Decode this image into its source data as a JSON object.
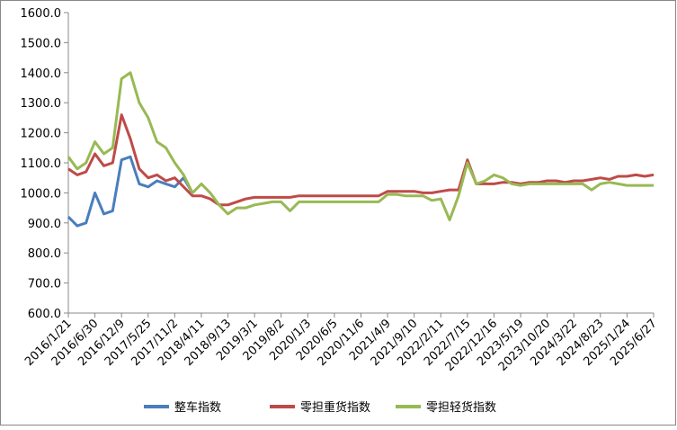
{
  "chart_data": {
    "type": "line",
    "categories": [
      "2016/1/21",
      null,
      null,
      "2016/6/30",
      null,
      null,
      "2016/12/9",
      null,
      null,
      "2017/5/25",
      null,
      null,
      "2017/11/2",
      null,
      null,
      "2018/4/11",
      null,
      null,
      "2018/9/13",
      null,
      null,
      "2019/3/1",
      null,
      null,
      "2019/8/2",
      null,
      null,
      "2020/1/3",
      null,
      null,
      "2020/6/5",
      null,
      null,
      "2020/11/6",
      null,
      null,
      "2021/4/9",
      null,
      null,
      "2021/9/10",
      null,
      null,
      "2022/2/11",
      null,
      null,
      "2022/7/15",
      null,
      null,
      "2022/12/16",
      null,
      null,
      "2023/5/19",
      null,
      null,
      "2023/10/20",
      null,
      null,
      "2024/3/22",
      null,
      null,
      "2024/8/23",
      null,
      null,
      "2025/1/24",
      null,
      null,
      "2025/6/27"
    ],
    "series": [
      {
        "name": "整车指数",
        "color": "#4a7ebb",
        "values": [
          920,
          890,
          900,
          1000,
          930,
          940,
          1110,
          1120,
          1030,
          1020,
          1040,
          1030,
          1020,
          1050,
          1000,
          null,
          null,
          null,
          null,
          null,
          null,
          null,
          null,
          null,
          null,
          null,
          null,
          null,
          null,
          null,
          null,
          null,
          null,
          null,
          null,
          null,
          null,
          null,
          null,
          null,
          null,
          null,
          null,
          null,
          null,
          null,
          null,
          null,
          null,
          null,
          null,
          null,
          null,
          null,
          null,
          null,
          null,
          null,
          null,
          null,
          null,
          null,
          null,
          null,
          null,
          null,
          null
        ]
      },
      {
        "name": "零担重货指数",
        "color": "#be4b48",
        "values": [
          1080,
          1060,
          1070,
          1130,
          1090,
          1100,
          1260,
          1180,
          1080,
          1050,
          1060,
          1040,
          1050,
          1020,
          990,
          990,
          980,
          960,
          960,
          970,
          980,
          985,
          985,
          985,
          985,
          985,
          990,
          990,
          990,
          990,
          990,
          990,
          990,
          990,
          990,
          990,
          1005,
          1005,
          1005,
          1005,
          1000,
          1000,
          1005,
          1010,
          1010,
          1110,
          1030,
          1030,
          1030,
          1035,
          1035,
          1030,
          1035,
          1035,
          1040,
          1040,
          1035,
          1040,
          1040,
          1045,
          1050,
          1045,
          1055,
          1055,
          1060,
          1055,
          1060
        ]
      },
      {
        "name": "零担轻货指数",
        "color": "#98b954",
        "values": [
          1120,
          1080,
          1100,
          1170,
          1130,
          1150,
          1380,
          1400,
          1300,
          1250,
          1170,
          1150,
          1100,
          1060,
          1000,
          1030,
          1000,
          960,
          930,
          950,
          950,
          960,
          965,
          970,
          970,
          940,
          970,
          970,
          970,
          970,
          970,
          970,
          970,
          970,
          970,
          970,
          995,
          995,
          990,
          990,
          990,
          975,
          980,
          910,
          990,
          1100,
          1030,
          1040,
          1060,
          1050,
          1030,
          1025,
          1030,
          1030,
          1030,
          1030,
          1030,
          1030,
          1030,
          1010,
          1030,
          1035,
          1030,
          1025,
          1025,
          1025,
          1025
        ]
      }
    ],
    "ylim": [
      600,
      1600
    ],
    "yticks": [
      {
        "value": 600,
        "label": "600.0"
      },
      {
        "value": 700,
        "label": "700.0"
      },
      {
        "value": 800,
        "label": "800.0"
      },
      {
        "value": 900,
        "label": "900.0"
      },
      {
        "value": 1000,
        "label": "1000.0"
      },
      {
        "value": 1100,
        "label": "1100.0"
      },
      {
        "value": 1200,
        "label": "1200.0"
      },
      {
        "value": 1300,
        "label": "1300.0"
      },
      {
        "value": 1400,
        "label": "1400.0"
      },
      {
        "value": 1500,
        "label": "1500.0"
      },
      {
        "value": 1600,
        "label": "1600.0"
      }
    ],
    "grid": false,
    "legend": "bottom"
  }
}
